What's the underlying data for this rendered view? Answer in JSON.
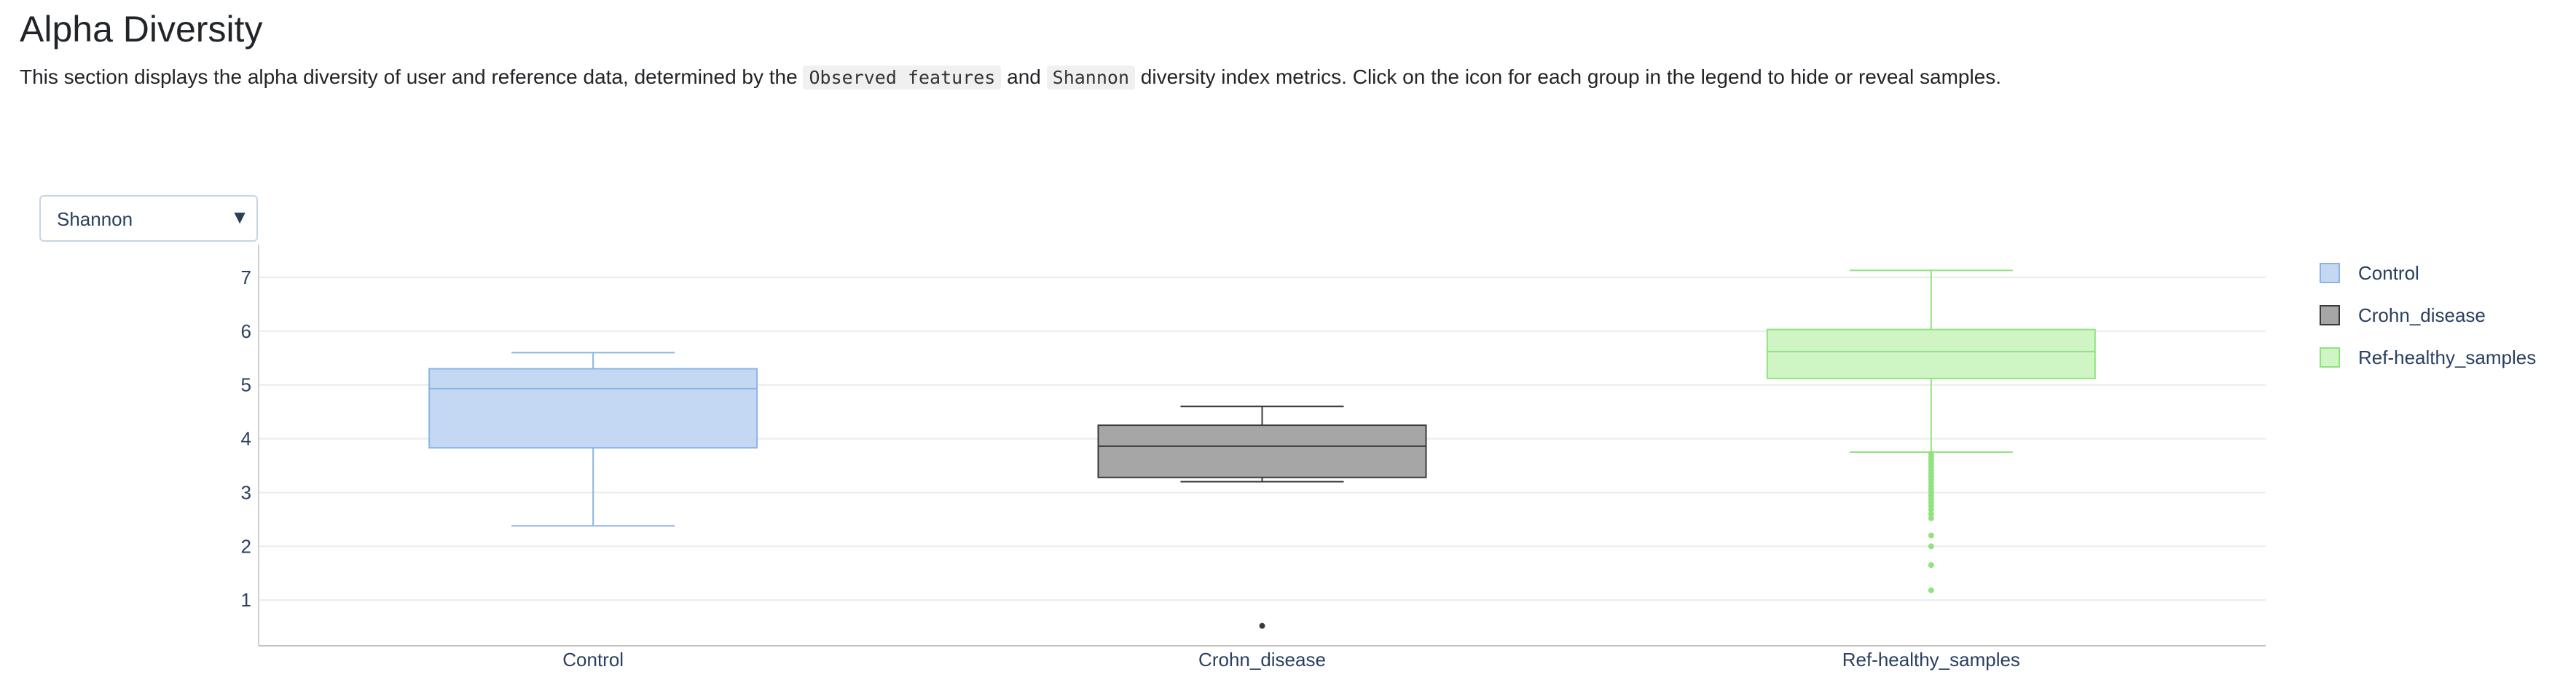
{
  "page": {
    "title": "Alpha Diversity",
    "intro": {
      "part1": "This section displays the alpha diversity of user and reference data, determined by the ",
      "code1": "Observed features",
      "part2": " and ",
      "code2": "Shannon",
      "part3": " diversity index metrics. Click on the icon for each group in the legend to hide or reveal samples."
    }
  },
  "controls": {
    "metric_select": {
      "selected": "Shannon",
      "caret_icon": "caret-down-icon"
    }
  },
  "chart_data": {
    "type": "box",
    "title": "",
    "xlabel": "",
    "ylabel": "",
    "ylim": [
      0.15,
      7.5
    ],
    "y_ticks": [
      1,
      2,
      3,
      4,
      5,
      6,
      7
    ],
    "grid": "horizontal",
    "legend_position": "right",
    "categories": [
      "Control",
      "Crohn_disease",
      "Ref-healthy_samples"
    ],
    "series": [
      {
        "name": "Control",
        "category": "Control",
        "whisker_low": 2.38,
        "q1": 3.83,
        "median": 4.93,
        "q3": 5.3,
        "whisker_high": 5.6,
        "outliers": [],
        "fill": "#c5d8f3",
        "stroke": "#8ab4e8"
      },
      {
        "name": "Crohn_disease",
        "category": "Crohn_disease",
        "whisker_low": 3.2,
        "q1": 3.28,
        "median": 3.86,
        "q3": 4.25,
        "whisker_high": 4.6,
        "outliers": [
          0.52
        ],
        "fill": "#a6a6a6",
        "stroke": "#3a3a3a"
      },
      {
        "name": "Ref-healthy_samples",
        "category": "Ref-healthy_samples",
        "whisker_low": 3.75,
        "q1": 5.12,
        "median": 5.62,
        "q3": 6.03,
        "whisker_high": 7.13,
        "outliers": [
          3.72,
          3.66,
          3.6,
          3.54,
          3.48,
          3.42,
          3.36,
          3.3,
          3.24,
          3.18,
          3.12,
          3.06,
          3.0,
          2.94,
          2.88,
          2.82,
          2.75,
          2.68,
          2.6,
          2.52,
          2.2,
          2.0,
          1.65,
          1.18
        ],
        "fill": "#cff5c4",
        "stroke": "#90e37f"
      }
    ]
  }
}
